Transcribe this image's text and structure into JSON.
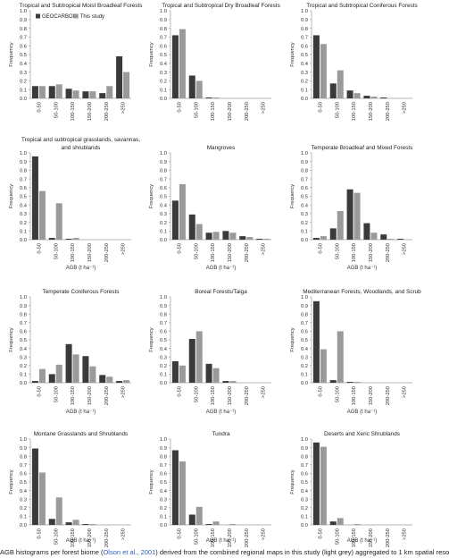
{
  "legend": {
    "items": [
      "GEOCARBON",
      "This study"
    ]
  },
  "colors": {
    "geocarbon": "#3a3a3a",
    "this_study": "#9a9a9a",
    "axis": "#9c9c9c"
  },
  "caption": {
    "prefix": "AGB histograms per forest biome (",
    "link": "Olson et al., 2001",
    "suffix": ") derived from the combined regional maps in this study (light grey) aggregated to 1 km spatial reso"
  },
  "chart_data": [
    {
      "type": "bar",
      "title": [
        "Tropical and Subtropical Moist Broadleaf Forests"
      ],
      "categories": [
        "0-50",
        "50-100",
        "100-150",
        "150-200",
        "200-250",
        ">250"
      ],
      "series": [
        {
          "name": "GEOCARBON",
          "values": [
            0.14,
            0.14,
            0.11,
            0.08,
            0.06,
            0.48
          ]
        },
        {
          "name": "This study",
          "values": [
            0.14,
            0.16,
            0.09,
            0.08,
            0.14,
            0.3
          ]
        }
      ],
      "ylim": [
        0,
        1
      ],
      "yticks": [
        "0.0",
        "0.1",
        "0.2",
        "0.3",
        "0.4",
        "0.5",
        "0.6",
        "0.7",
        "0.8",
        "0.9",
        "1.0"
      ],
      "ylabel": "Frequency",
      "xlabel": "",
      "legend": "top-left",
      "grid": false
    },
    {
      "type": "bar",
      "title": [
        "Tropical and Subtropical Dry Broadleaf Forests"
      ],
      "categories": [
        "0-50",
        "50-100",
        "100-150",
        "150-200",
        "200-250",
        ">250"
      ],
      "series": [
        {
          "name": "GEOCARBON",
          "values": [
            0.72,
            0.26,
            0.01,
            0.0,
            0.0,
            0.0
          ]
        },
        {
          "name": "This study",
          "values": [
            0.79,
            0.2,
            0.01,
            0.0,
            0.0,
            0.0
          ]
        }
      ],
      "ylim": [
        0,
        1
      ],
      "yticks": [
        "0.0",
        "0.1",
        "0.2",
        "0.3",
        "0.4",
        "0.5",
        "0.6",
        "0.7",
        "0.8",
        "0.9",
        "1.0"
      ],
      "ylabel": "Frequency",
      "xlabel": "",
      "grid": false
    },
    {
      "type": "bar",
      "title": [
        "Tropical and Subtropical Coniferous Forests"
      ],
      "categories": [
        "0-50",
        "50-100",
        "100-150",
        "150-200",
        "200-250",
        ">250"
      ],
      "series": [
        {
          "name": "GEOCARBON",
          "values": [
            0.72,
            0.17,
            0.09,
            0.03,
            0.01,
            0.0
          ]
        },
        {
          "name": "This study",
          "values": [
            0.62,
            0.32,
            0.06,
            0.02,
            0.0,
            0.0
          ]
        }
      ],
      "ylim": [
        0,
        1
      ],
      "yticks": [
        "0.0",
        "0.1",
        "0.2",
        "0.3",
        "0.4",
        "0.5",
        "0.6",
        "0.7",
        "0.8",
        "0.9",
        "1.0"
      ],
      "ylabel": "Frequency",
      "xlabel": "",
      "grid": false
    },
    {
      "type": "bar",
      "title": [
        "Tropical and subtropical grasslands, savannas,",
        "and shrublands"
      ],
      "categories": [
        "0-50",
        "50-100",
        "100-150",
        "150-200",
        "200-250",
        ">250"
      ],
      "series": [
        {
          "name": "GEOCARBON",
          "values": [
            0.96,
            0.02,
            0.01,
            0.0,
            0.0,
            0.0
          ]
        },
        {
          "name": "This study",
          "values": [
            0.56,
            0.42,
            0.02,
            0.0,
            0.0,
            0.0
          ]
        }
      ],
      "ylim": [
        0,
        1
      ],
      "yticks": [
        "0.0",
        "0.1",
        "0.2",
        "0.3",
        "0.4",
        "0.5",
        "0.6",
        "0.7",
        "0.8",
        "0.9",
        "1.0"
      ],
      "ylabel": "Frequency",
      "xlabel": "AGB (t ha⁻¹)",
      "grid": false
    },
    {
      "type": "bar",
      "title": [
        "Mangroves"
      ],
      "categories": [
        "0-50",
        "50-100",
        "100-150",
        "150-200",
        "200-250",
        ">250"
      ],
      "series": [
        {
          "name": "GEOCARBON",
          "values": [
            0.45,
            0.29,
            0.08,
            0.1,
            0.04,
            0.01
          ]
        },
        {
          "name": "This study",
          "values": [
            0.64,
            0.18,
            0.09,
            0.08,
            0.03,
            0.01
          ]
        }
      ],
      "ylim": [
        0,
        1
      ],
      "yticks": [
        "0.0",
        "0.1",
        "0.2",
        "0.3",
        "0.4",
        "0.5",
        "0.6",
        "0.7",
        "0.8",
        "0.9",
        "1.0"
      ],
      "ylabel": "Frequency",
      "xlabel": "AGB (t ha⁻¹)",
      "grid": false
    },
    {
      "type": "bar",
      "title": [
        "Temperate Broadleaf and Mixed Forests"
      ],
      "categories": [
        "0-50",
        "50-100",
        "100-150",
        "150-200",
        "200-250",
        ">250"
      ],
      "series": [
        {
          "name": "GEOCARBON",
          "values": [
            0.02,
            0.13,
            0.58,
            0.19,
            0.06,
            0.01
          ]
        },
        {
          "name": "This study",
          "values": [
            0.04,
            0.33,
            0.54,
            0.08,
            0.01,
            0.0
          ]
        }
      ],
      "ylim": [
        0,
        1
      ],
      "yticks": [
        "0.0",
        "0.1",
        "0.2",
        "0.3",
        "0.4",
        "0.5",
        "0.6",
        "0.7",
        "0.8",
        "0.9",
        "1.0"
      ],
      "ylabel": "Frequency",
      "xlabel": "AGB (t ha⁻¹)",
      "grid": false
    },
    {
      "type": "bar",
      "title": [
        "Temperate Coniferous Forests"
      ],
      "categories": [
        "0-50",
        "50-100",
        "100-150",
        "150-200",
        "200-250",
        ">250"
      ],
      "series": [
        {
          "name": "GEOCARBON",
          "values": [
            0.02,
            0.1,
            0.45,
            0.31,
            0.09,
            0.02
          ]
        },
        {
          "name": "This study",
          "values": [
            0.16,
            0.21,
            0.33,
            0.19,
            0.07,
            0.03
          ]
        }
      ],
      "ylim": [
        0,
        1
      ],
      "yticks": [
        "0.0",
        "0.1",
        "0.2",
        "0.3",
        "0.4",
        "0.5",
        "0.6",
        "0.7",
        "0.8",
        "0.9",
        "1.0"
      ],
      "ylabel": "Frequency",
      "xlabel": "AGB (t ha⁻¹)",
      "grid": false
    },
    {
      "type": "bar",
      "title": [
        "Boreal Forests/Taiga"
      ],
      "categories": [
        "0-50",
        "50-100",
        "100-150",
        "150-200",
        "200-250",
        ">250"
      ],
      "series": [
        {
          "name": "GEOCARBON",
          "values": [
            0.25,
            0.51,
            0.22,
            0.02,
            0.0,
            0.0
          ]
        },
        {
          "name": "This study",
          "values": [
            0.2,
            0.6,
            0.17,
            0.02,
            0.0,
            0.0
          ]
        }
      ],
      "ylim": [
        0,
        1
      ],
      "yticks": [
        "0.0",
        "0.1",
        "0.2",
        "0.3",
        "0.4",
        "0.5",
        "0.6",
        "0.7",
        "0.8",
        "0.9",
        "1.0"
      ],
      "ylabel": "Frequency",
      "xlabel": "AGB (t ha⁻¹)",
      "grid": false
    },
    {
      "type": "bar",
      "title": [
        "Mediterranean Forests, Woodlands, and Scrub"
      ],
      "categories": [
        "0-50",
        "50-100",
        "100-150",
        "150-200",
        "200-250",
        ">250"
      ],
      "series": [
        {
          "name": "GEOCARBON",
          "values": [
            0.95,
            0.03,
            0.01,
            0.0,
            0.0,
            0.0
          ]
        },
        {
          "name": "This study",
          "values": [
            0.39,
            0.6,
            0.01,
            0.0,
            0.0,
            0.0
          ]
        }
      ],
      "ylim": [
        0,
        1
      ],
      "yticks": [
        "0.0",
        "0.1",
        "0.2",
        "0.3",
        "0.4",
        "0.5",
        "0.6",
        "0.7",
        "0.8",
        "0.9",
        "1.0"
      ],
      "ylabel": "Frequency",
      "xlabel": "AGB (t ha⁻¹)",
      "grid": false
    },
    {
      "type": "bar",
      "title": [
        "Montane Grasslands and Shrublands"
      ],
      "categories": [
        "0-50",
        "50-100",
        "100-150",
        "150-200",
        "200-250",
        ">250"
      ],
      "series": [
        {
          "name": "GEOCARBON",
          "values": [
            0.89,
            0.07,
            0.03,
            0.01,
            0.0,
            0.0
          ]
        },
        {
          "name": "This study",
          "values": [
            0.61,
            0.32,
            0.06,
            0.01,
            0.0,
            0.0
          ]
        }
      ],
      "ylim": [
        0,
        1
      ],
      "yticks": [
        "0.0",
        "0.1",
        "0.2",
        "0.3",
        "0.4",
        "0.5",
        "0.6",
        "0.7",
        "0.8",
        "0.9",
        "1.0"
      ],
      "ylabel": "Frequency",
      "xlabel": "AGB (t ha⁻¹)",
      "grid": false
    },
    {
      "type": "bar",
      "title": [
        "Tundra"
      ],
      "categories": [
        "0-50",
        "50-100",
        "100-150",
        "150-200",
        "200-250",
        ">250"
      ],
      "series": [
        {
          "name": "GEOCARBON",
          "values": [
            0.87,
            0.12,
            0.01,
            0.0,
            0.0,
            0.0
          ]
        },
        {
          "name": "This study",
          "values": [
            0.74,
            0.21,
            0.04,
            0.01,
            0.0,
            0.0
          ]
        }
      ],
      "ylim": [
        0,
        1
      ],
      "yticks": [
        "0.0",
        "0.1",
        "0.2",
        "0.3",
        "0.4",
        "0.5",
        "0.6",
        "0.7",
        "0.8",
        "0.9",
        "1.0"
      ],
      "ylabel": "Frequency",
      "xlabel": "AGB (t ha⁻¹)",
      "grid": false
    },
    {
      "type": "bar",
      "title": [
        "Deserts and Xeric Shrublands"
      ],
      "categories": [
        "0-50",
        "50-100",
        "100-150",
        "150-200",
        "200-250",
        ">250"
      ],
      "series": [
        {
          "name": "GEOCARBON",
          "values": [
            0.96,
            0.04,
            0.0,
            0.0,
            0.0,
            0.0
          ]
        },
        {
          "name": "This study",
          "values": [
            0.91,
            0.08,
            0.01,
            0.0,
            0.0,
            0.0
          ]
        }
      ],
      "ylim": [
        0,
        1
      ],
      "yticks": [
        "0.0",
        "0.1",
        "0.2",
        "0.3",
        "0.4",
        "0.5",
        "0.6",
        "0.7",
        "0.8",
        "0.9",
        "1.0"
      ],
      "ylabel": "Frequency",
      "xlabel": "AGB (t ha⁻¹)",
      "grid": false
    }
  ]
}
